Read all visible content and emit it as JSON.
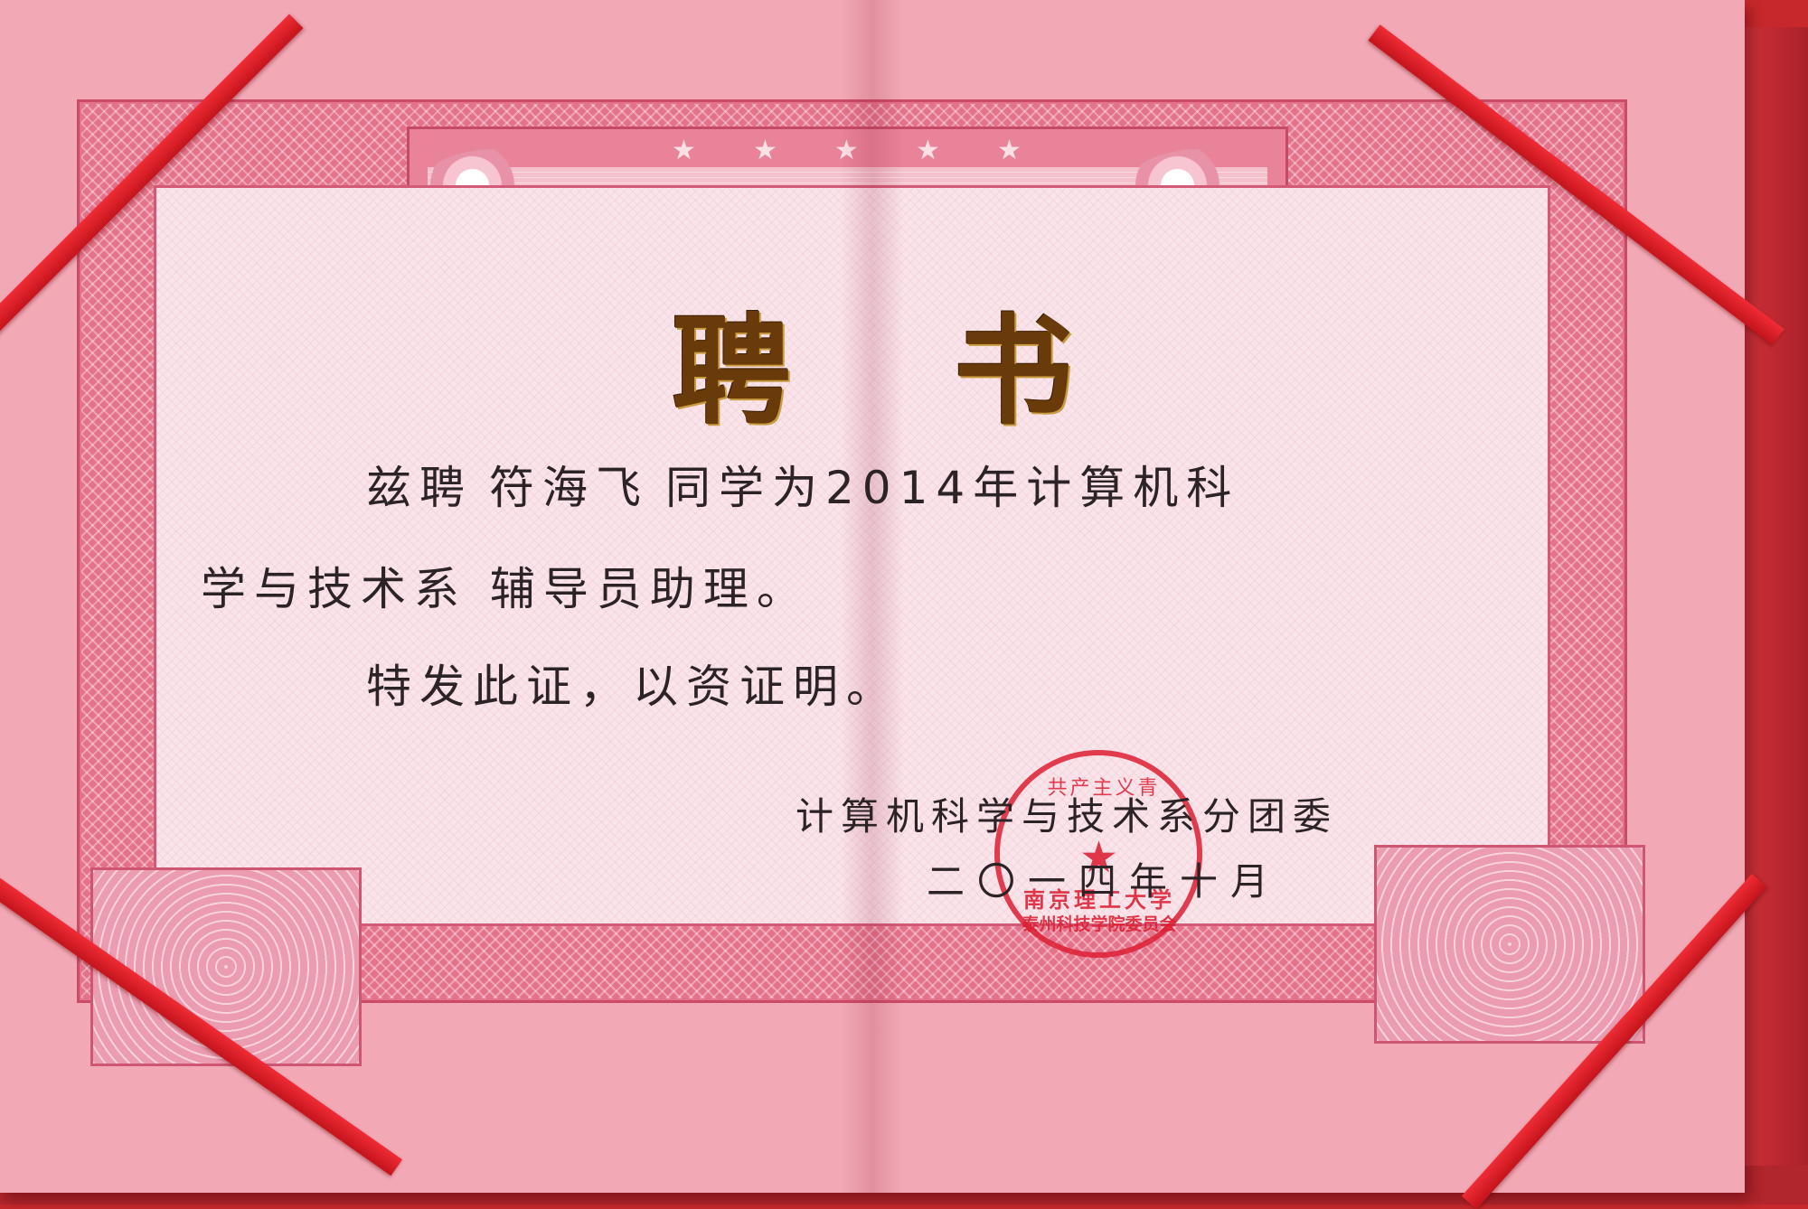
{
  "certificate": {
    "title": "聘书",
    "line1_prefix": "兹聘",
    "recipient_name": "符海飞",
    "line1_suffix": "同学为2014年计算机科",
    "line2_dept": "学与技术系",
    "line2_role": "辅导员助理。",
    "line3": "特发此证，以资证明。",
    "issuer": "计算机科学与技术系分团委",
    "date": "二〇一四年十月"
  },
  "seal": {
    "arc_text": "共产主义青",
    "line1": "南京理工大学",
    "line2": "泰州科技学院委员会",
    "color": "#dc1e32"
  },
  "colors": {
    "cover": "#c7282b",
    "paper": "#f2a9b5",
    "ribbon": "#e0202a",
    "title_gold": "#6a3b0a"
  }
}
